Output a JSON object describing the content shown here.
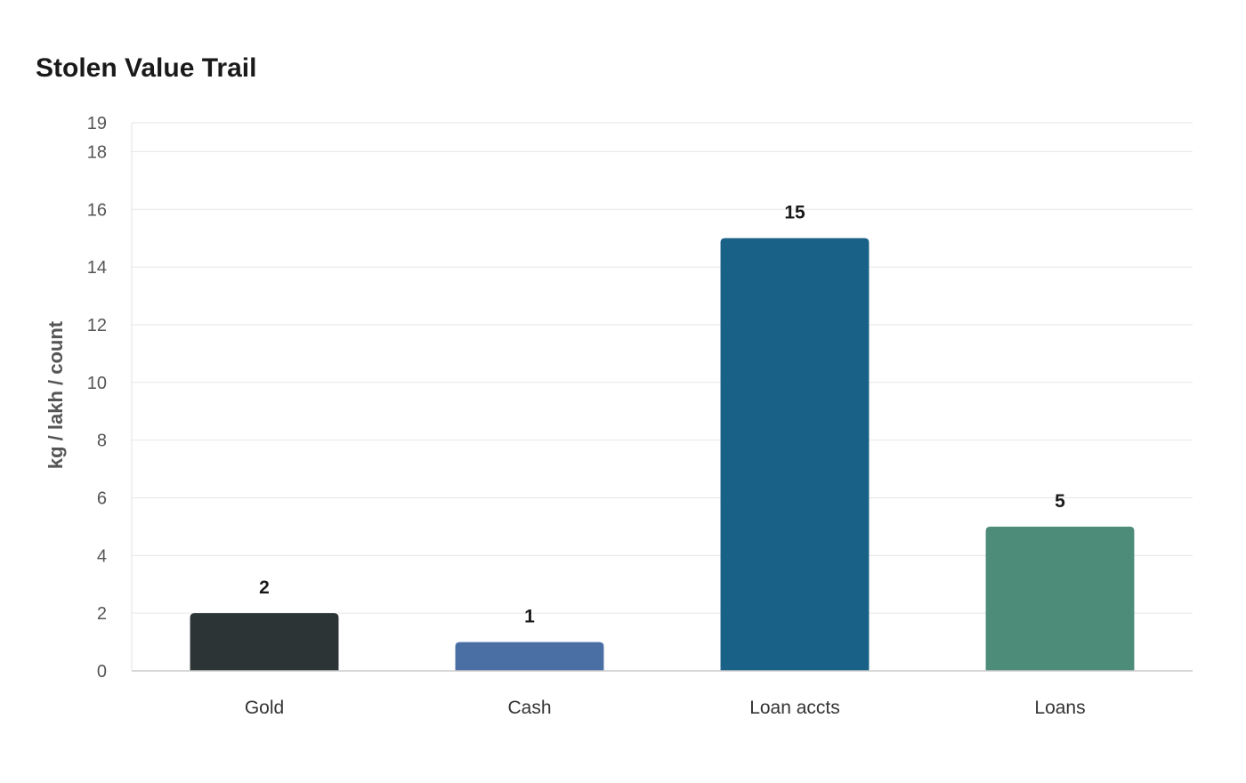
{
  "chart_data": {
    "type": "bar",
    "title": "Stolen Value Trail",
    "xlabel": "",
    "ylabel": "kg / lakh / count",
    "categories": [
      "Gold",
      "Cash",
      "Loan accts",
      "Loans"
    ],
    "values": [
      2,
      1,
      15,
      5
    ],
    "colors": [
      "#2d3436",
      "#4a6fa5",
      "#1a6187",
      "#4e8c7a"
    ],
    "ylim": [
      0,
      19
    ],
    "yticks": [
      0,
      2,
      4,
      6,
      8,
      10,
      12,
      14,
      16,
      18,
      19
    ],
    "grid": true,
    "legend": "none"
  }
}
